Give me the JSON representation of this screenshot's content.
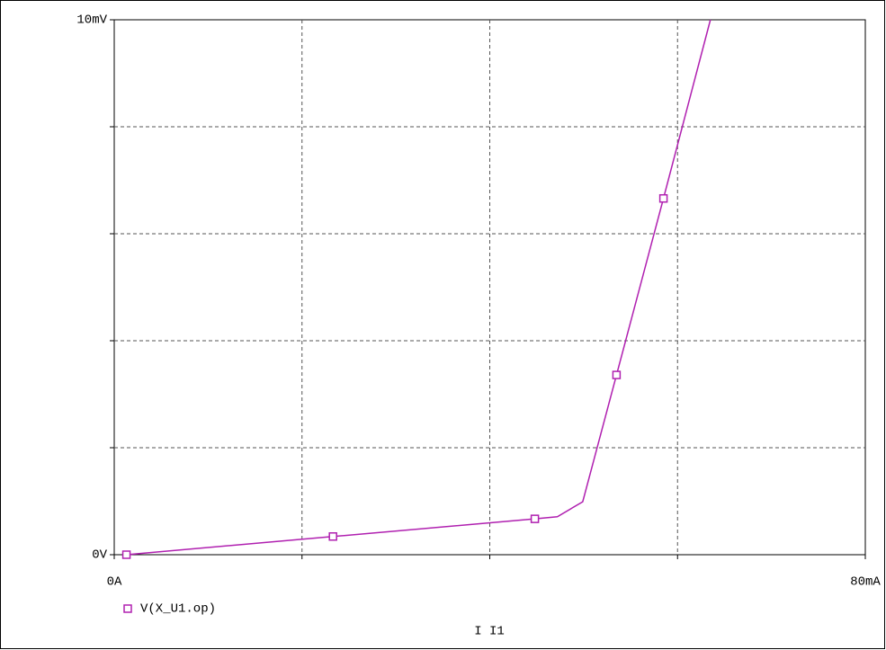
{
  "chart_data": {
    "type": "line",
    "xlabel": "I I1",
    "x": [
      1.3,
      23.3,
      44.8,
      47.2,
      49.9,
      53.5,
      58.5,
      63.5
    ],
    "series": [
      {
        "name": "V(X_U1.op)",
        "color": "#b020b0",
        "values": [
          0,
          0.34,
          0.67,
          0.71,
          0.99,
          3.36,
          6.66,
          10
        ],
        "markers": [
          0,
          1,
          2,
          5,
          6
        ]
      }
    ],
    "xlim": [
      0,
      80
    ],
    "xticks": [
      {
        "value": 0,
        "label": "0A"
      },
      {
        "value": 80,
        "label": "80mA"
      }
    ],
    "xgrid": [
      20,
      40,
      60
    ],
    "ylim": [
      0,
      10
    ],
    "yticks": [
      {
        "value": 0,
        "label": "0V"
      },
      {
        "value": 10,
        "label": "10mV"
      }
    ],
    "ygrid": [
      2,
      4,
      6,
      8
    ],
    "grid": true,
    "legend": "bottom-left"
  }
}
